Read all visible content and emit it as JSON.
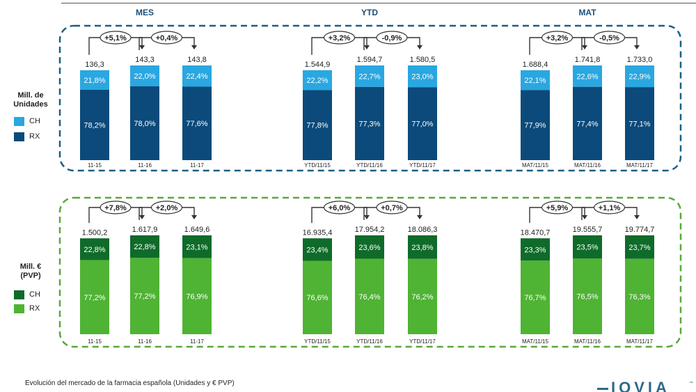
{
  "footnote": "Evolución del mercado de la farmacia española (Unidades y € PVP)",
  "logo": "IQVIA",
  "logo_tm": "™",
  "colors": {
    "units_ch": "#2aa7e0",
    "units_rx": "#0b4a7a",
    "units_border": "#1a5f85",
    "value_ch": "#0f6b2a",
    "value_rx": "#4fb334",
    "value_border": "#5aa83a"
  },
  "legend_units": {
    "title_line1": "Mill. de",
    "title_line2": "Unidades",
    "ch": "CH",
    "rx": "RX"
  },
  "legend_value": {
    "title_line1": "Mill. €",
    "title_line2": "(PVP)",
    "ch": "CH",
    "rx": "RX"
  },
  "chart_data": [
    {
      "type": "bar",
      "title": "MES",
      "metric": "Mill. de Unidades",
      "categories": [
        "11-15",
        "11-16",
        "11-17"
      ],
      "totals": [
        "136,3",
        "143,3",
        "143,8"
      ],
      "growth": [
        "+5,1%",
        "+0,4%"
      ],
      "series": [
        {
          "name": "RX",
          "values": [
            "78,2%",
            "78,0%",
            "77,6%"
          ]
        },
        {
          "name": "CH",
          "values": [
            "21,8%",
            "22,0%",
            "22,4%"
          ]
        }
      ]
    },
    {
      "type": "bar",
      "title": "YTD",
      "metric": "Mill. de Unidades",
      "categories": [
        "YTD/11/15",
        "YTD/11/16",
        "YTD/11/17"
      ],
      "totals": [
        "1.544,9",
        "1.594,7",
        "1.580,5"
      ],
      "growth": [
        "+3,2%",
        "-0,9%"
      ],
      "series": [
        {
          "name": "RX",
          "values": [
            "77,8%",
            "77,3%",
            "77,0%"
          ]
        },
        {
          "name": "CH",
          "values": [
            "22,2%",
            "22,7%",
            "23,0%"
          ]
        }
      ]
    },
    {
      "type": "bar",
      "title": "MAT",
      "metric": "Mill. de Unidades",
      "categories": [
        "MAT/11/15",
        "MAT/11/16",
        "MAT/11/17"
      ],
      "totals": [
        "1.688,4",
        "1.741,8",
        "1.733,0"
      ],
      "growth": [
        "+3,2%",
        "-0,5%"
      ],
      "series": [
        {
          "name": "RX",
          "values": [
            "77,9%",
            "77,4%",
            "77,1%"
          ]
        },
        {
          "name": "CH",
          "values": [
            "22,1%",
            "22,6%",
            "22,9%"
          ]
        }
      ]
    },
    {
      "type": "bar",
      "title": "",
      "metric": "Mill. € (PVP)",
      "categories": [
        "11-15",
        "11-16",
        "11-17"
      ],
      "totals": [
        "1.500,2",
        "1.617,9",
        "1.649,6"
      ],
      "growth": [
        "+7,8%",
        "+2,0%"
      ],
      "series": [
        {
          "name": "RX",
          "values": [
            "77,2%",
            "77,2%",
            "76,9%"
          ]
        },
        {
          "name": "CH",
          "values": [
            "22,8%",
            "22,8%",
            "23,1%"
          ]
        }
      ]
    },
    {
      "type": "bar",
      "title": "",
      "metric": "Mill. € (PVP)",
      "categories": [
        "YTD/11/15",
        "YTD/11/16",
        "YTD/11/17"
      ],
      "totals": [
        "16.935,4",
        "17.954,2",
        "18.086,3"
      ],
      "growth": [
        "+6,0%",
        "+0,7%"
      ],
      "series": [
        {
          "name": "RX",
          "values": [
            "76,6%",
            "76,4%",
            "76,2%"
          ]
        },
        {
          "name": "CH",
          "values": [
            "23,4%",
            "23,6%",
            "23,8%"
          ]
        }
      ]
    },
    {
      "type": "bar",
      "title": "",
      "metric": "Mill. € (PVP)",
      "categories": [
        "MAT/11/15",
        "MAT/11/16",
        "MAT/11/17"
      ],
      "totals": [
        "18.470,7",
        "19.555,7",
        "19.774,7"
      ],
      "growth": [
        "+5,9%",
        "+1,1%"
      ],
      "series": [
        {
          "name": "RX",
          "values": [
            "76,7%",
            "76,5%",
            "76,3%"
          ]
        },
        {
          "name": "CH",
          "values": [
            "23,3%",
            "23,5%",
            "23,7%"
          ]
        }
      ]
    }
  ]
}
